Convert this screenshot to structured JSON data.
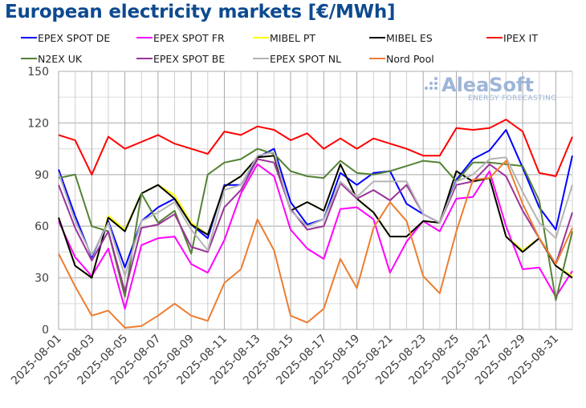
{
  "title": "European electricity markets [€/MWh]",
  "watermark": {
    "brand": "AleaSoft",
    "tagline": "ENERGY FORECASTING"
  },
  "chart_data": {
    "type": "line",
    "title": "European electricity markets [€/MWh]",
    "xlabel": "",
    "ylabel": "",
    "ylim": [
      0,
      150
    ],
    "yticks": [
      0,
      30,
      60,
      90,
      120,
      150
    ],
    "grid": true,
    "legend_position": "top",
    "x": [
      "2025-08-01",
      "2025-08-02",
      "2025-08-03",
      "2025-08-04",
      "2025-08-05",
      "2025-08-06",
      "2025-08-07",
      "2025-08-08",
      "2025-08-09",
      "2025-08-10",
      "2025-08-11",
      "2025-08-12",
      "2025-08-13",
      "2025-08-14",
      "2025-08-15",
      "2025-08-16",
      "2025-08-17",
      "2025-08-18",
      "2025-08-19",
      "2025-08-20",
      "2025-08-21",
      "2025-08-22",
      "2025-08-23",
      "2025-08-24",
      "2025-08-25",
      "2025-08-26",
      "2025-08-27",
      "2025-08-28",
      "2025-08-29",
      "2025-08-30",
      "2025-08-31",
      "2025-09-01"
    ],
    "xtick_labels": [
      "2025-08-01",
      "2025-08-03",
      "2025-08-05",
      "2025-08-07",
      "2025-08-09",
      "2025-08-11",
      "2025-08-13",
      "2025-08-15",
      "2025-08-17",
      "2025-08-19",
      "2025-08-21",
      "2025-08-23",
      "2025-08-25",
      "2025-08-27",
      "2025-08-29",
      "2025-08-31"
    ],
    "series": [
      {
        "name": "EPEX SPOT DE",
        "color": "#0000ff",
        "values": [
          93,
          66,
          42,
          63,
          36,
          63,
          71,
          76,
          61,
          53,
          84,
          84,
          100,
          105,
          74,
          61,
          64,
          91,
          84,
          91,
          92,
          73,
          67,
          62,
          87,
          99,
          104,
          116,
          94,
          71,
          58,
          101
        ]
      },
      {
        "name": "EPEX SPOT FR",
        "color": "#ff00ff",
        "values": [
          63,
          42,
          31,
          47,
          12,
          49,
          53,
          54,
          38,
          33,
          52,
          79,
          96,
          89,
          58,
          47,
          41,
          70,
          71,
          64,
          33,
          51,
          63,
          57,
          76,
          77,
          92,
          60,
          35,
          36,
          19,
          34
        ]
      },
      {
        "name": "MIBEL PT",
        "color": "#ffff00",
        "values": [
          65,
          37,
          30,
          66,
          58,
          79,
          84,
          78,
          62,
          55,
          83,
          89,
          100,
          101,
          69,
          74,
          69,
          96,
          76,
          68,
          54,
          54,
          63,
          62,
          92,
          86,
          88,
          54,
          46,
          53,
          37,
          31
        ]
      },
      {
        "name": "MIBEL ES",
        "color": "#000000",
        "values": [
          65,
          37,
          30,
          65,
          57,
          79,
          84,
          76,
          61,
          55,
          83,
          89,
          100,
          101,
          69,
          74,
          69,
          96,
          76,
          68,
          54,
          54,
          63,
          62,
          92,
          86,
          88,
          54,
          45,
          53,
          37,
          30
        ]
      },
      {
        "name": "IPEX IT",
        "color": "#ff0000",
        "values": [
          113,
          110,
          90,
          112,
          105,
          109,
          113,
          108,
          105,
          102,
          115,
          113,
          118,
          116,
          110,
          114,
          105,
          111,
          105,
          111,
          108,
          105,
          101,
          101,
          117,
          116,
          117,
          122,
          115,
          91,
          89,
          112
        ]
      },
      {
        "name": "N2EX UK",
        "color": "#548235",
        "values": [
          88,
          90,
          60,
          57,
          19,
          79,
          62,
          69,
          44,
          90,
          97,
          99,
          105,
          102,
          92,
          89,
          88,
          98,
          91,
          90,
          92,
          95,
          98,
          97,
          86,
          97,
          97,
          96,
          95,
          75,
          17,
          57
        ]
      },
      {
        "name": "EPEX SPOT BE",
        "color": "#993399",
        "values": [
          84,
          59,
          40,
          57,
          22,
          59,
          61,
          67,
          48,
          45,
          71,
          81,
          99,
          97,
          70,
          58,
          60,
          85,
          76,
          81,
          75,
          84,
          67,
          62,
          84,
          86,
          96,
          89,
          69,
          53,
          38,
          68
        ]
      },
      {
        "name": "EPEX SPOT NL",
        "color": "#b4b4b4",
        "values": [
          91,
          63,
          43,
          62,
          31,
          63,
          68,
          74,
          58,
          46,
          81,
          84,
          101,
          103,
          69,
          60,
          64,
          86,
          77,
          86,
          86,
          86,
          67,
          62,
          86,
          90,
          99,
          100,
          80,
          62,
          53,
          84
        ]
      },
      {
        "name": "Nord Pool",
        "color": "#ed7d31",
        "values": [
          44,
          25,
          8,
          11,
          1,
          2,
          8,
          15,
          8,
          5,
          27,
          35,
          64,
          46,
          8,
          4,
          12,
          41,
          24,
          59,
          74,
          63,
          31,
          21,
          57,
          87,
          88,
          98,
          73,
          53,
          38,
          59
        ]
      }
    ]
  }
}
